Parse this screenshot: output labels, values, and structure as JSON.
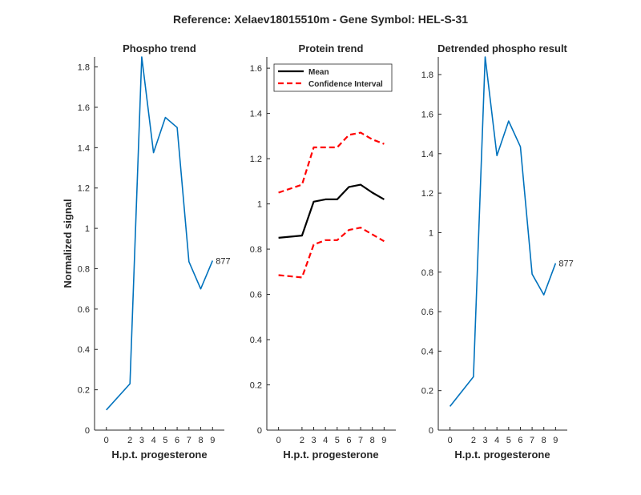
{
  "figure": {
    "suptitle": "Reference:  Xelaev18015510m - Gene Symbol:  HEL-S-31"
  },
  "colors": {
    "phospho_line": "#0072BD",
    "mean_line": "#000000",
    "ci_line": "#FF0000",
    "axis": "#262626"
  },
  "chart_data": [
    {
      "type": "line",
      "title": "Phospho trend",
      "xlabel": "H.p.t. progesterone",
      "ylabel": "Normalized signal",
      "x": [
        0,
        2,
        3,
        4,
        5,
        6,
        7,
        8,
        9
      ],
      "xlim": [
        -1,
        10
      ],
      "ylim": [
        0,
        1.85
      ],
      "xticks": [
        "0",
        "2",
        "3",
        "4",
        "5",
        "6",
        "7",
        "8",
        "9"
      ],
      "yticks": [
        0,
        0.2,
        0.4,
        0.6,
        0.8,
        1,
        1.2,
        1.4,
        1.6,
        1.8
      ],
      "series": [
        {
          "values": [
            0.1,
            0.23,
            1.85,
            1.375,
            1.55,
            1.5,
            0.835,
            0.7,
            0.84
          ]
        }
      ],
      "annotations": [
        {
          "x": 9,
          "y": 0.84,
          "text": "877"
        }
      ],
      "grid": false
    },
    {
      "type": "line",
      "title": "Protein trend",
      "xlabel": "H.p.t. progesterone",
      "ylabel": "",
      "x": [
        0,
        2,
        3,
        4,
        5,
        6,
        7,
        8,
        9
      ],
      "xlim": [
        -1,
        10
      ],
      "ylim": [
        0,
        1.65
      ],
      "xticks": [
        "0",
        "2",
        "3",
        "4",
        "5",
        "6",
        "7",
        "8",
        "9"
      ],
      "yticks": [
        0,
        0.2,
        0.4,
        0.6,
        0.8,
        1,
        1.2,
        1.4,
        1.6
      ],
      "series": [
        {
          "name": "Mean",
          "values": [
            0.85,
            0.86,
            1.01,
            1.02,
            1.02,
            1.075,
            1.085,
            1.05,
            1.02
          ]
        },
        {
          "name": "Confidence Interval",
          "values": [
            1.05,
            1.085,
            1.25,
            1.25,
            1.25,
            1.305,
            1.315,
            1.285,
            1.265
          ]
        },
        {
          "values": [
            0.685,
            0.675,
            0.82,
            0.84,
            0.84,
            0.885,
            0.895,
            0.865,
            0.835
          ]
        }
      ],
      "legend": "top-left",
      "grid": false
    },
    {
      "type": "line",
      "title": "Detrended phospho result",
      "xlabel": "H.p.t. progesterone",
      "ylabel": "",
      "x": [
        0,
        2,
        3,
        4,
        5,
        6,
        7,
        8,
        9
      ],
      "xlim": [
        -1,
        10
      ],
      "ylim": [
        0,
        1.89
      ],
      "xticks": [
        "0",
        "2",
        "3",
        "4",
        "5",
        "6",
        "7",
        "8",
        "9"
      ],
      "yticks": [
        0,
        0.2,
        0.4,
        0.6,
        0.8,
        1,
        1.2,
        1.4,
        1.6,
        1.8
      ],
      "series": [
        {
          "values": [
            0.12,
            0.27,
            1.89,
            1.39,
            1.565,
            1.435,
            0.79,
            0.685,
            0.845
          ]
        }
      ],
      "annotations": [
        {
          "x": 9,
          "y": 0.845,
          "text": "877"
        }
      ],
      "grid": false
    }
  ]
}
